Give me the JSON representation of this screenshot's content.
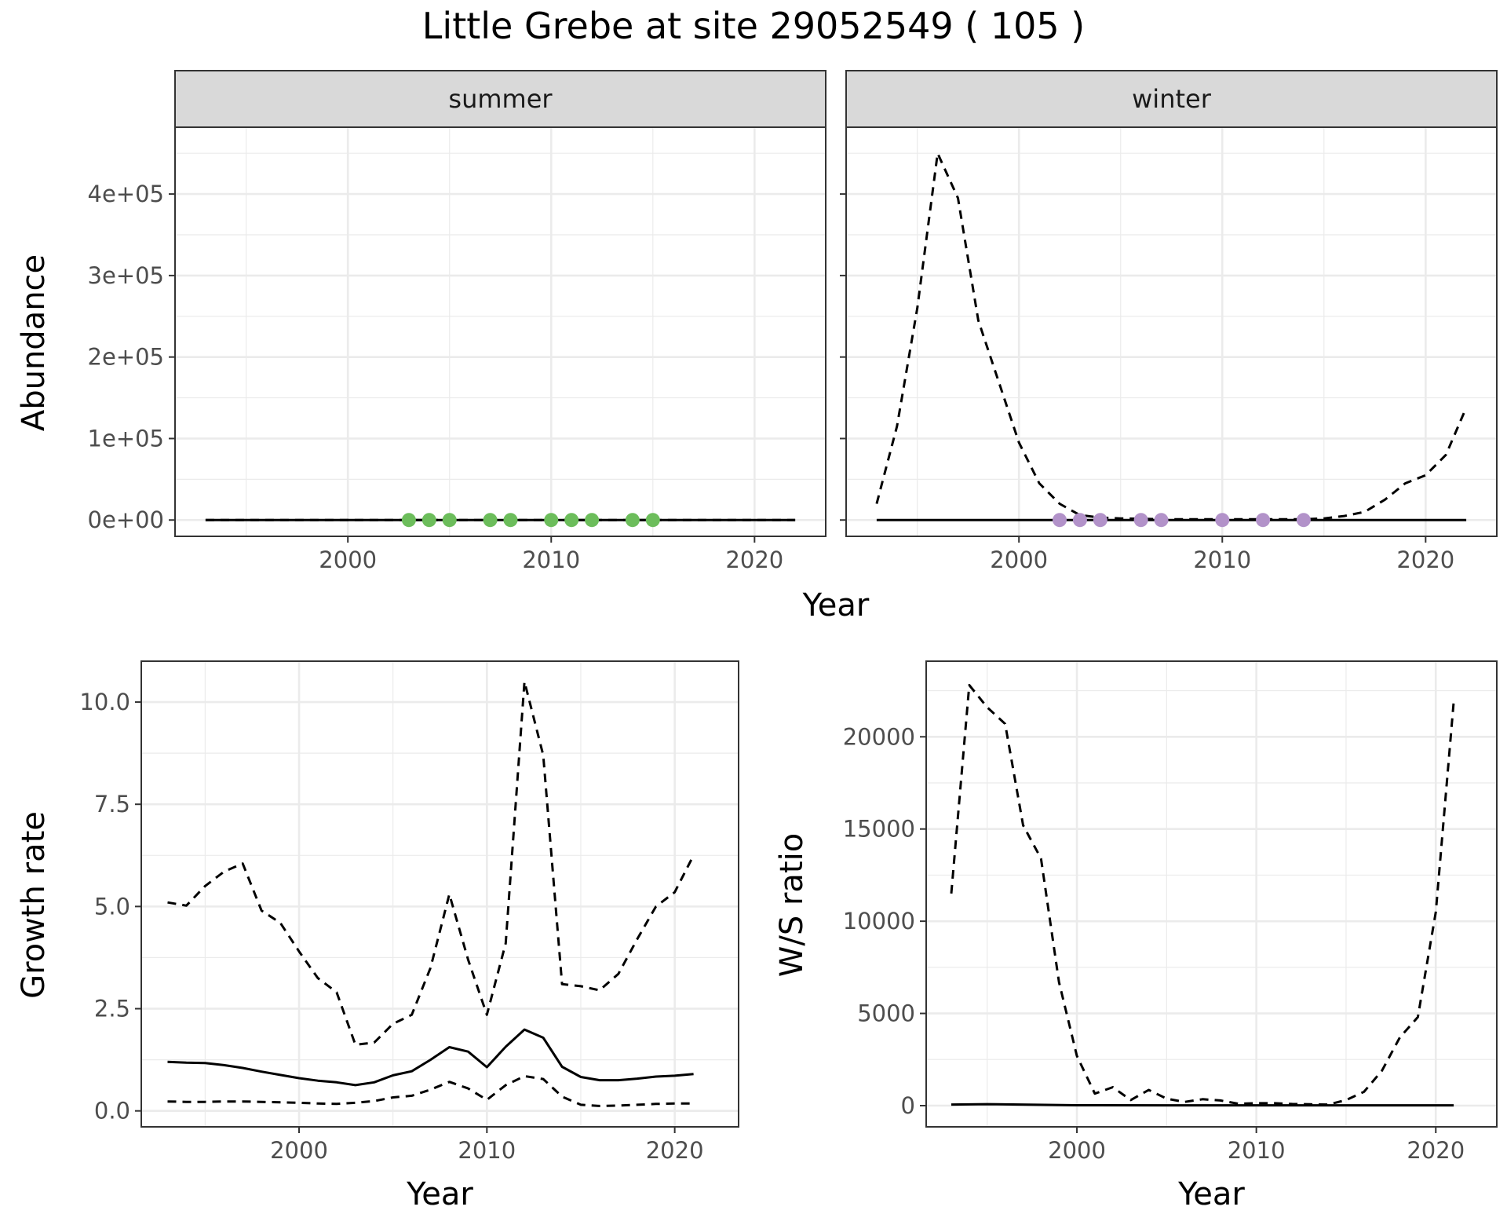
{
  "figure_title": "Little Grebe at site 29052549 ( 105 )",
  "colors": {
    "summer_points": "#6cbd5b",
    "winter_points": "#b292c9",
    "lines": "#000000",
    "strip": "#d9d9d9",
    "grid": "#ebebeb"
  },
  "chart_data": [
    {
      "type": "line",
      "facet": "summer",
      "xlabel": "Year",
      "ylabel": "Abundance",
      "xlim": [
        1991.5,
        2023.5
      ],
      "ylim": [
        -20000,
        482000
      ],
      "x_ticks": [
        2000,
        2010,
        2020
      ],
      "y_ticks": [
        0,
        100000,
        200000,
        300000,
        400000
      ],
      "y_tick_labels": [
        "0e+00",
        "1e+05",
        "2e+05",
        "3e+05",
        "4e+05"
      ],
      "grid": true,
      "series": [
        {
          "style": "solid",
          "x": [
            1993,
            2022
          ],
          "y": [
            0,
            0
          ]
        },
        {
          "style": "dashed",
          "x": [
            1993,
            2022
          ],
          "y": [
            0,
            0
          ]
        }
      ],
      "points": {
        "x": [
          2003,
          2004,
          2005,
          2007,
          2008,
          2010,
          2011,
          2012,
          2014,
          2015
        ],
        "y": [
          0,
          0,
          0,
          0,
          0,
          0,
          0,
          0,
          0,
          0
        ]
      }
    },
    {
      "type": "line",
      "facet": "winter",
      "xlabel": "Year",
      "ylabel": "Abundance",
      "xlim": [
        1991.5,
        2023.5
      ],
      "ylim": [
        -20000,
        482000
      ],
      "x_ticks": [
        2000,
        2010,
        2020
      ],
      "y_ticks": [
        0,
        100000,
        200000,
        300000,
        400000
      ],
      "grid": true,
      "series": [
        {
          "style": "solid",
          "x": [
            1993,
            2022
          ],
          "y": [
            0,
            0
          ]
        },
        {
          "style": "dashed",
          "x": [
            1993,
            1994,
            1995,
            1996,
            1997,
            1998,
            1999,
            2000,
            2001,
            2002,
            2003,
            2004,
            2005,
            2006,
            2007,
            2008,
            2009,
            2010,
            2011,
            2012,
            2013,
            2014,
            2015,
            2016,
            2017,
            2018,
            2019,
            2020,
            2021,
            2022
          ],
          "y": [
            20000,
            115000,
            260000,
            450000,
            395000,
            245000,
            170000,
            95000,
            45000,
            20000,
            6000,
            3000,
            2000,
            1500,
            1000,
            1000,
            1000,
            1000,
            1000,
            1000,
            1000,
            1000,
            2000,
            5000,
            10000,
            25000,
            45000,
            55000,
            80000,
            138000
          ]
        }
      ],
      "points": {
        "x": [
          2002,
          2003,
          2004,
          2006,
          2007,
          2010,
          2012,
          2014
        ],
        "y": [
          0,
          0,
          0,
          0,
          0,
          0,
          0,
          0
        ]
      }
    },
    {
      "type": "line",
      "xlabel": "Year",
      "ylabel": "Growth rate",
      "xlim": [
        1991.6,
        2023.4
      ],
      "ylim": [
        -0.39,
        11.0
      ],
      "x_ticks": [
        2000,
        2010,
        2020
      ],
      "y_ticks": [
        0.0,
        2.5,
        5.0,
        7.5,
        10.0
      ],
      "y_tick_labels": [
        "0.0",
        "2.5",
        "5.0",
        "7.5",
        "10.0"
      ],
      "grid": true,
      "series": [
        {
          "style": "solid",
          "x": [
            1993,
            1994,
            1995,
            1996,
            1997,
            1998,
            1999,
            2000,
            2001,
            2002,
            2003,
            2004,
            2005,
            2006,
            2007,
            2008,
            2009,
            2010,
            2011,
            2012,
            2013,
            2014,
            2015,
            2016,
            2017,
            2018,
            2019,
            2020,
            2021
          ],
          "y": [
            1.2,
            1.18,
            1.17,
            1.12,
            1.05,
            0.96,
            0.88,
            0.8,
            0.74,
            0.7,
            0.63,
            0.7,
            0.87,
            0.97,
            1.25,
            1.56,
            1.45,
            1.07,
            1.57,
            1.99,
            1.79,
            1.08,
            0.83,
            0.75,
            0.75,
            0.79,
            0.84,
            0.86,
            0.9
          ]
        },
        {
          "style": "dashed",
          "x": [
            1993,
            1994,
            1995,
            1996,
            1997,
            1998,
            1999,
            2000,
            2001,
            2002,
            2003,
            2004,
            2005,
            2006,
            2007,
            2008,
            2009,
            2010,
            2011,
            2012,
            2013,
            2014,
            2015,
            2016,
            2017,
            2018,
            2019,
            2020,
            2021
          ],
          "y": [
            5.1,
            5.02,
            5.5,
            5.85,
            6.05,
            4.9,
            4.6,
            3.9,
            3.25,
            2.9,
            1.62,
            1.67,
            2.13,
            2.35,
            3.5,
            5.3,
            3.7,
            2.35,
            4.1,
            10.5,
            8.7,
            3.1,
            3.05,
            2.95,
            3.35,
            4.2,
            5.0,
            5.35,
            6.25
          ]
        },
        {
          "style": "dashed",
          "x": [
            1993,
            1994,
            1995,
            1996,
            1997,
            1998,
            1999,
            2000,
            2001,
            2002,
            2003,
            2004,
            2005,
            2006,
            2007,
            2008,
            2009,
            2010,
            2011,
            2012,
            2013,
            2014,
            2015,
            2016,
            2017,
            2018,
            2019,
            2020,
            2021
          ],
          "y": [
            0.23,
            0.22,
            0.22,
            0.23,
            0.23,
            0.22,
            0.21,
            0.2,
            0.18,
            0.17,
            0.2,
            0.24,
            0.33,
            0.37,
            0.52,
            0.71,
            0.55,
            0.27,
            0.63,
            0.85,
            0.78,
            0.35,
            0.15,
            0.12,
            0.13,
            0.15,
            0.17,
            0.18,
            0.18
          ]
        }
      ]
    },
    {
      "type": "line",
      "xlabel": "Year",
      "ylabel": "W/S ratio",
      "xlim": [
        1991.6,
        2023.4
      ],
      "ylim": [
        -1150,
        24100
      ],
      "x_ticks": [
        2000,
        2010,
        2020
      ],
      "y_ticks": [
        0,
        5000,
        10000,
        15000,
        20000
      ],
      "grid": true,
      "series": [
        {
          "style": "solid",
          "x": [
            1993,
            1995,
            2000,
            2005,
            2010,
            2015,
            2020,
            2021
          ],
          "y": [
            60,
            80,
            20,
            15,
            15,
            15,
            15,
            15
          ]
        },
        {
          "style": "dashed",
          "x": [
            1993,
            1994,
            1995,
            1996,
            1997,
            1998,
            1999,
            2000,
            2001,
            2002,
            2003,
            2004,
            2005,
            2006,
            2007,
            2008,
            2009,
            2010,
            2011,
            2012,
            2013,
            2014,
            2015,
            2016,
            2017,
            2018,
            2019,
            2020,
            2021
          ],
          "y": [
            11500,
            22800,
            21600,
            20700,
            15200,
            13400,
            6700,
            2700,
            650,
            1000,
            300,
            850,
            380,
            200,
            350,
            280,
            100,
            130,
            130,
            90,
            70,
            60,
            300,
            750,
            1900,
            3700,
            4800,
            10500,
            21900
          ]
        }
      ]
    }
  ]
}
